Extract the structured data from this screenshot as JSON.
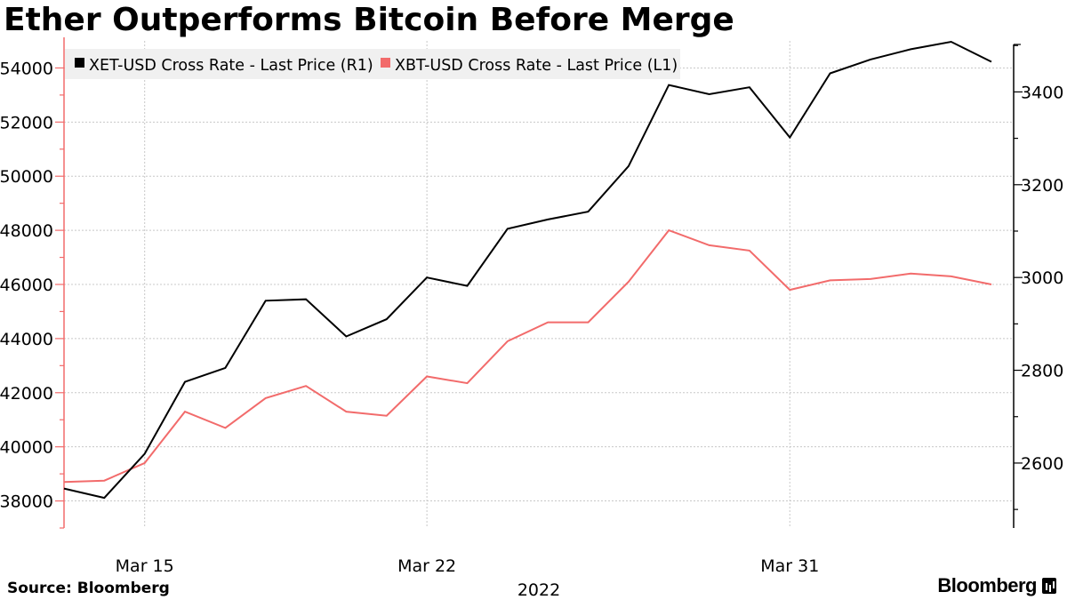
{
  "header": {
    "title": "Ether Outperforms Bitcoin Before Merge"
  },
  "footer": {
    "source": "Source: Bloomberg",
    "brand": "Bloomberg"
  },
  "chart_data": {
    "type": "line",
    "title": "Ether Outperforms Bitcoin Before Merge",
    "xlabel": "2022",
    "x": [
      "Mar 13",
      "Mar 14",
      "Mar 15",
      "Mar 16",
      "Mar 17",
      "Mar 18",
      "Mar 19",
      "Mar 20",
      "Mar 21",
      "Mar 22",
      "Mar 23",
      "Mar 24",
      "Mar 25",
      "Mar 26",
      "Mar 27",
      "Mar 28",
      "Mar 29",
      "Mar 30",
      "Mar 31",
      "Apr 1",
      "Apr 2",
      "Apr 3",
      "Apr 4",
      "Apr 5"
    ],
    "x_ticks": [
      {
        "label": "Mar 15",
        "index": 2
      },
      {
        "label": "Mar 22",
        "index": 9
      },
      {
        "label": "Mar 31",
        "index": 18
      }
    ],
    "left_axis": {
      "range": [
        37000,
        55000
      ],
      "ticks": [
        38000,
        40000,
        42000,
        44000,
        46000,
        48000,
        50000,
        52000,
        54000
      ]
    },
    "right_axis": {
      "range": [
        2460,
        3510
      ],
      "ticks": [
        2600,
        2800,
        3000,
        3200,
        3400
      ]
    },
    "series": [
      {
        "name": "XET-USD Cross Rate - Last Price (R1)",
        "axis": "right",
        "color": "#000000",
        "values": [
          2545,
          2525,
          2620,
          2775,
          2805,
          2950,
          2953,
          2873,
          2910,
          3000,
          2982,
          3105,
          3125,
          3142,
          3240,
          3415,
          3395,
          3410,
          3302,
          3440,
          3470,
          3492,
          3508,
          3465
        ]
      },
      {
        "name": "XBT-USD Cross Rate - Last Price (L1)",
        "axis": "left",
        "color": "#f26b6b",
        "values": [
          38700,
          38750,
          39400,
          41300,
          40700,
          41800,
          42250,
          41300,
          41150,
          42600,
          42350,
          43900,
          44600,
          44600,
          46100,
          48000,
          47450,
          47250,
          45800,
          46150,
          46200,
          46400,
          46300,
          46000
        ]
      }
    ],
    "grid": true,
    "legend": "top-left"
  }
}
